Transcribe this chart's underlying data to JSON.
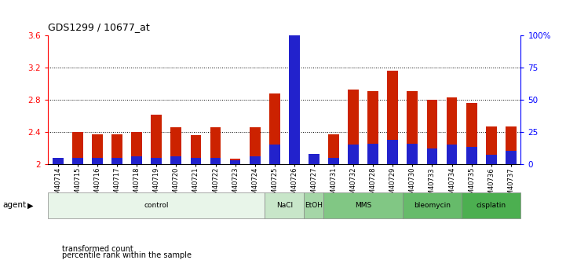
{
  "title": "GDS1299 / 10677_at",
  "samples": [
    "GSM40714",
    "GSM40715",
    "GSM40716",
    "GSM40717",
    "GSM40718",
    "GSM40719",
    "GSM40720",
    "GSM40721",
    "GSM40722",
    "GSM40723",
    "GSM40724",
    "GSM40725",
    "GSM40726",
    "GSM40727",
    "GSM40731",
    "GSM40732",
    "GSM40728",
    "GSM40729",
    "GSM40730",
    "GSM40733",
    "GSM40734",
    "GSM40735",
    "GSM40736",
    "GSM40737"
  ],
  "red_values": [
    2.06,
    2.4,
    2.37,
    2.37,
    2.4,
    2.61,
    2.46,
    2.36,
    2.46,
    2.07,
    2.46,
    2.88,
    3.57,
    2.1,
    2.37,
    2.92,
    2.91,
    3.16,
    2.91,
    2.8,
    2.83,
    2.76,
    2.47,
    2.47
  ],
  "percentile_values": [
    5,
    5,
    5,
    5,
    6,
    5,
    6,
    5,
    5,
    3,
    6,
    15,
    100,
    8,
    5,
    15,
    16,
    19,
    16,
    12,
    15,
    13,
    7,
    10
  ],
  "agent_groups": [
    {
      "label": "control",
      "start": 0,
      "end": 11,
      "color": "#e8f5e9"
    },
    {
      "label": "NaCl",
      "start": 11,
      "end": 13,
      "color": "#c8e6c9"
    },
    {
      "label": "EtOH",
      "start": 13,
      "end": 14,
      "color": "#a5d6a7"
    },
    {
      "label": "MMS",
      "start": 14,
      "end": 18,
      "color": "#81c784"
    },
    {
      "label": "bleomycin",
      "start": 18,
      "end": 21,
      "color": "#66bb6a"
    },
    {
      "label": "cisplatin",
      "start": 21,
      "end": 24,
      "color": "#4caf50"
    }
  ],
  "ylim_left": [
    2.0,
    3.6
  ],
  "ylim_right": [
    0,
    100
  ],
  "yticks_left": [
    2.0,
    2.4,
    2.8,
    3.2,
    3.6
  ],
  "ytick_labels_left": [
    "2",
    "2.4",
    "2.8",
    "3.2",
    "3.6"
  ],
  "yticks_right": [
    0,
    25,
    50,
    75,
    100
  ],
  "ytick_labels_right": [
    "0",
    "25",
    "50",
    "75",
    "100%"
  ],
  "hlines": [
    2.4,
    2.8,
    3.2
  ],
  "bar_color_red": "#cc2200",
  "bar_color_blue": "#2222cc",
  "legend_red": "transformed count",
  "legend_blue": "percentile rank within the sample",
  "agent_label": "agent"
}
